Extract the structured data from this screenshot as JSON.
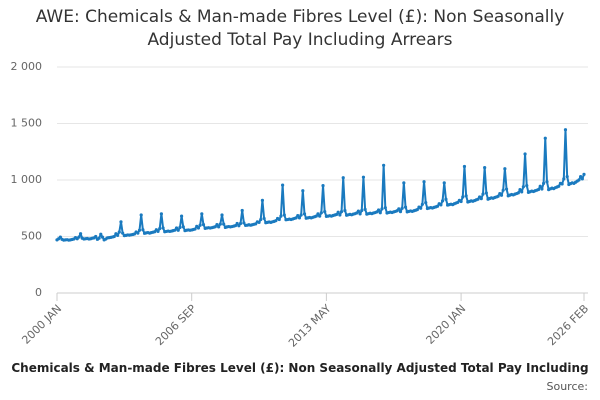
{
  "chart_data": {
    "type": "line",
    "title": "AWE: Chemicals & Man-made Fibres Level (£): Non Seasonally Adjusted Total Pay Including Arrears",
    "x_label": "Chemicals & Man-made Fibres Level (£): Non Seasonally Adjusted Total Pay Including",
    "source": "Source:",
    "categories": [
      "2000 JAN",
      null,
      null,
      null,
      null,
      null,
      null,
      null,
      null,
      null,
      null,
      null,
      null,
      null,
      null,
      null,
      null,
      null,
      null,
      null,
      null,
      null,
      null,
      null,
      null,
      null,
      null,
      null,
      null,
      null,
      null,
      null,
      null,
      null,
      null,
      null,
      null,
      null,
      null,
      null,
      null,
      null,
      null,
      null,
      null,
      null,
      null,
      null,
      null,
      null,
      null,
      null,
      null,
      null,
      null,
      null,
      null,
      null,
      null,
      null,
      null,
      null,
      null,
      null,
      null,
      null,
      null,
      null,
      null,
      null,
      null,
      null,
      null,
      null,
      null,
      null,
      null,
      null,
      null,
      null,
      "2006 SEP",
      null,
      null,
      null,
      null,
      null,
      null,
      null,
      null,
      null,
      null,
      null,
      null,
      null,
      null,
      null,
      null,
      null,
      null,
      null,
      null,
      null,
      null,
      null,
      null,
      null,
      null,
      null,
      null,
      null,
      null,
      null,
      null,
      null,
      null,
      null,
      null,
      null,
      null,
      null,
      null,
      null,
      null,
      null,
      null,
      null,
      null,
      null,
      null,
      null,
      null,
      null,
      null,
      null,
      null,
      null,
      null,
      null,
      null,
      null,
      null,
      null,
      null,
      null,
      null,
      null,
      null,
      null,
      null,
      null,
      null,
      null,
      null,
      null,
      null,
      null,
      null,
      null,
      null,
      null,
      "2013 MAY",
      null,
      null,
      null,
      null,
      null,
      null,
      null,
      null,
      null,
      null,
      null,
      null,
      null,
      null,
      null,
      null,
      null,
      null,
      null,
      null,
      null,
      null,
      null,
      null,
      null,
      null,
      null,
      null,
      null,
      null,
      null,
      null,
      null,
      null,
      null,
      null,
      null,
      null,
      null,
      null,
      null,
      null,
      null,
      null,
      null,
      null,
      null,
      null,
      null,
      null,
      null,
      null,
      null,
      null,
      null,
      null,
      null,
      null,
      null,
      null,
      null,
      null,
      null,
      null,
      null,
      null,
      null,
      null,
      null,
      null,
      null,
      null,
      null,
      null,
      null,
      null,
      null,
      null,
      null,
      "2020 JAN",
      null,
      null,
      null,
      null,
      null,
      null,
      null,
      null,
      null,
      null,
      null,
      null,
      null,
      null,
      null,
      null,
      null,
      null,
      null,
      null,
      null,
      null,
      null,
      null,
      null,
      null,
      null,
      null,
      null,
      null,
      null,
      null,
      null,
      null,
      null,
      null,
      null,
      null,
      null,
      null,
      null,
      null,
      null,
      null,
      null,
      null,
      null,
      null,
      null,
      null,
      null,
      null,
      null,
      null,
      null,
      null,
      null,
      null,
      null,
      null,
      null,
      null,
      null,
      null,
      null,
      null,
      null,
      null,
      null,
      null,
      null,
      null,
      "2026 FEB"
    ],
    "series": [
      {
        "color": "#1a7abf",
        "values": [
          470,
          480,
          495,
          475,
          468,
          470,
          472,
          468,
          470,
          474,
          478,
          490,
          480,
          495,
          525,
          485,
          478,
          480,
          482,
          478,
          480,
          485,
          488,
          500,
          475,
          485,
          520,
          495,
          470,
          478,
          488,
          490,
          492,
          496,
          500,
          525,
          510,
          540,
          630,
          530,
          508,
          510,
          514,
          512,
          515,
          518,
          522,
          540,
          530,
          555,
          690,
          560,
          528,
          532,
          535,
          530,
          534,
          538,
          542,
          560,
          545,
          570,
          700,
          575,
          542,
          545,
          548,
          545,
          548,
          552,
          556,
          575,
          555,
          580,
          680,
          585,
          552,
          555,
          558,
          555,
          558,
          562,
          566,
          590,
          575,
          600,
          700,
          605,
          572,
          575,
          578,
          575,
          578,
          582,
          586,
          605,
          585,
          610,
          690,
          610,
          580,
          585,
          588,
          585,
          588,
          592,
          596,
          615,
          595,
          615,
          730,
          620,
          598,
          600,
          604,
          600,
          604,
          608,
          612,
          630,
          625,
          650,
          820,
          660,
          622,
          625,
          628,
          625,
          630,
          634,
          640,
          660,
          650,
          680,
          955,
          690,
          648,
          650,
          654,
          650,
          655,
          660,
          665,
          685,
          665,
          690,
          905,
          700,
          662,
          665,
          668,
          665,
          670,
          675,
          680,
          700,
          680,
          710,
          950,
          720,
          678,
          680,
          684,
          680,
          686,
          690,
          695,
          715,
          690,
          720,
          1020,
          730,
          688,
          692,
          696,
          692,
          698,
          702,
          708,
          725,
          700,
          730,
          1025,
          740,
          698,
          702,
          706,
          702,
          708,
          712,
          718,
          735,
          710,
          745,
          1130,
          755,
          708,
          712,
          716,
          712,
          718,
          722,
          728,
          745,
          720,
          750,
          975,
          760,
          718,
          722,
          726,
          722,
          728,
          732,
          738,
          760,
          750,
          785,
          985,
          800,
          748,
          752,
          756,
          752,
          758,
          762,
          768,
          790,
          780,
          815,
          975,
          830,
          778,
          782,
          786,
          782,
          790,
          796,
          802,
          820,
          810,
          850,
          1120,
          860,
          805,
          810,
          815,
          812,
          818,
          824,
          830,
          850,
          835,
          875,
          1110,
          885,
          830,
          836,
          842,
          838,
          845,
          850,
          856,
          880,
          865,
          910,
          1100,
          920,
          860,
          866,
          872,
          868,
          875,
          880,
          886,
          915,
          895,
          940,
          1230,
          950,
          890,
          896,
          902,
          898,
          905,
          910,
          916,
          945,
          920,
          970,
          1370,
          985,
          915,
          922,
          928,
          924,
          932,
          938,
          945,
          970,
          965,
          1010,
          1445,
          1030,
          960,
          968,
          975,
          970,
          980,
          990,
          1000,
          1030,
          1010,
          1050
        ]
      }
    ],
    "ylim": [
      0,
      2000
    ],
    "yticks": [
      0,
      500,
      {
        "value": 1000,
        "label": "1 000"
      },
      {
        "value": 1500,
        "label": "1 500"
      },
      {
        "value": 2000,
        "label": "2 000"
      }
    ],
    "grid": true
  }
}
